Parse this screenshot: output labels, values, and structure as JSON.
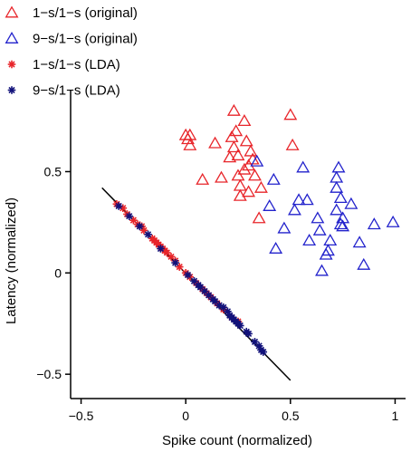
{
  "chart_data": {
    "type": "scatter",
    "xlabel": "Spike count (normalized)",
    "ylabel": "Latency (normalized)",
    "xlim": [
      -0.55,
      1.05
    ],
    "ylim": [
      -0.62,
      0.9
    ],
    "x_ticks": [
      -0.5,
      0,
      0.5,
      1
    ],
    "x_tick_labels": [
      "−0.5",
      "0",
      "0.5",
      "1"
    ],
    "y_ticks": [
      -0.5,
      0,
      0.5
    ],
    "y_tick_labels": [
      "−0.5",
      "0",
      "0.5"
    ],
    "grid": false,
    "legend_position": "top-left",
    "series": [
      {
        "name": "1−s/1−s (original)",
        "marker": "triangle-open",
        "color": "#e8252a",
        "points": [
          [
            0.0,
            0.68
          ],
          [
            0.01,
            0.66
          ],
          [
            0.02,
            0.63
          ],
          [
            0.02,
            0.68
          ],
          [
            0.08,
            0.46
          ],
          [
            0.14,
            0.64
          ],
          [
            0.17,
            0.47
          ],
          [
            0.21,
            0.57
          ],
          [
            0.22,
            0.67
          ],
          [
            0.23,
            0.62
          ],
          [
            0.23,
            0.8
          ],
          [
            0.24,
            0.7
          ],
          [
            0.25,
            0.58
          ],
          [
            0.25,
            0.48
          ],
          [
            0.26,
            0.43
          ],
          [
            0.26,
            0.38
          ],
          [
            0.28,
            0.51
          ],
          [
            0.28,
            0.75
          ],
          [
            0.29,
            0.65
          ],
          [
            0.3,
            0.4
          ],
          [
            0.3,
            0.53
          ],
          [
            0.31,
            0.6
          ],
          [
            0.32,
            0.56
          ],
          [
            0.33,
            0.48
          ],
          [
            0.35,
            0.27
          ],
          [
            0.36,
            0.42
          ],
          [
            0.5,
            0.78
          ],
          [
            0.51,
            0.63
          ]
        ]
      },
      {
        "name": "9−s/1−s (original)",
        "marker": "triangle-open",
        "color": "#2222cc",
        "points": [
          [
            0.34,
            0.55
          ],
          [
            0.4,
            0.33
          ],
          [
            0.42,
            0.46
          ],
          [
            0.43,
            0.12
          ],
          [
            0.47,
            0.22
          ],
          [
            0.52,
            0.31
          ],
          [
            0.54,
            0.36
          ],
          [
            0.56,
            0.52
          ],
          [
            0.58,
            0.36
          ],
          [
            0.59,
            0.16
          ],
          [
            0.63,
            0.27
          ],
          [
            0.64,
            0.21
          ],
          [
            0.65,
            0.01
          ],
          [
            0.67,
            0.09
          ],
          [
            0.68,
            0.11
          ],
          [
            0.69,
            0.16
          ],
          [
            0.72,
            0.31
          ],
          [
            0.72,
            0.42
          ],
          [
            0.72,
            0.47
          ],
          [
            0.73,
            0.52
          ],
          [
            0.74,
            0.24
          ],
          [
            0.74,
            0.37
          ],
          [
            0.75,
            0.23
          ],
          [
            0.75,
            0.27
          ],
          [
            0.79,
            0.34
          ],
          [
            0.83,
            0.15
          ],
          [
            0.85,
            0.04
          ],
          [
            0.9,
            0.24
          ],
          [
            0.99,
            0.25
          ]
        ]
      },
      {
        "name": "1−s/1−s (LDA)",
        "marker": "asterisk",
        "color": "#e8252a",
        "points": [
          [
            -0.33,
            0.34
          ],
          [
            -0.3,
            0.32
          ],
          [
            -0.28,
            0.29
          ],
          [
            -0.25,
            0.26
          ],
          [
            -0.23,
            0.24
          ],
          [
            -0.21,
            0.23
          ],
          [
            -0.2,
            0.21
          ],
          [
            -0.16,
            0.17
          ],
          [
            -0.15,
            0.16
          ],
          [
            -0.14,
            0.15
          ],
          [
            -0.13,
            0.14
          ],
          [
            -0.12,
            0.13
          ],
          [
            -0.11,
            0.12
          ],
          [
            -0.1,
            0.11
          ],
          [
            -0.09,
            0.1
          ],
          [
            -0.07,
            0.08
          ],
          [
            -0.05,
            0.06
          ],
          [
            -0.03,
            0.03
          ],
          [
            0.0,
            0.0
          ],
          [
            0.02,
            -0.02
          ],
          [
            0.05,
            -0.05
          ],
          [
            0.08,
            -0.08
          ],
          [
            0.1,
            -0.1
          ],
          [
            0.12,
            -0.12
          ],
          [
            0.15,
            -0.15
          ],
          [
            0.18,
            -0.18
          ],
          [
            0.22,
            -0.22
          ],
          [
            0.25,
            -0.24
          ]
        ]
      },
      {
        "name": "9−s/1−s (LDA)",
        "marker": "asterisk",
        "color": "#12127a",
        "points": [
          [
            -0.32,
            0.33
          ],
          [
            -0.27,
            0.28
          ],
          [
            -0.22,
            0.23
          ],
          [
            -0.18,
            0.19
          ],
          [
            -0.12,
            0.12
          ],
          [
            -0.05,
            0.05
          ],
          [
            0.01,
            -0.01
          ],
          [
            0.04,
            -0.04
          ],
          [
            0.06,
            -0.06
          ],
          [
            0.07,
            -0.07
          ],
          [
            0.09,
            -0.09
          ],
          [
            0.11,
            -0.11
          ],
          [
            0.13,
            -0.13
          ],
          [
            0.14,
            -0.14
          ],
          [
            0.16,
            -0.16
          ],
          [
            0.18,
            -0.17
          ],
          [
            0.2,
            -0.19
          ],
          [
            0.21,
            -0.21
          ],
          [
            0.22,
            -0.22
          ],
          [
            0.23,
            -0.23
          ],
          [
            0.24,
            -0.24
          ],
          [
            0.25,
            -0.25
          ],
          [
            0.26,
            -0.26
          ],
          [
            0.29,
            -0.29
          ],
          [
            0.3,
            -0.3
          ],
          [
            0.33,
            -0.34
          ],
          [
            0.35,
            -0.36
          ],
          [
            0.36,
            -0.38
          ],
          [
            0.37,
            -0.39
          ]
        ]
      }
    ],
    "fit_line": {
      "color": "#000000",
      "points": [
        [
          -0.4,
          0.42
        ],
        [
          0.5,
          -0.53
        ]
      ]
    }
  }
}
